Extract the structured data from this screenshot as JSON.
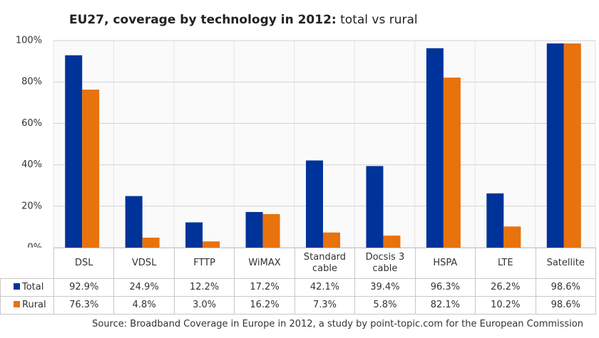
{
  "chart_data": {
    "type": "bar",
    "title": "EU27, coverage by technology in 2012:",
    "subtitle": "total vs rural",
    "source": "Source: Broadband Coverage in Europe in 2012, a study by point-topic.com for the European Commission",
    "categories": [
      "DSL",
      "VDSL",
      "FTTP",
      "WiMAX",
      "Standard cable",
      "Docsis 3 cable",
      "HSPA",
      "LTE",
      "Satellite"
    ],
    "series": [
      {
        "name": "Total",
        "color": "#003399",
        "values": [
          92.9,
          24.9,
          12.2,
          17.2,
          42.1,
          39.4,
          96.3,
          26.2,
          98.6
        ],
        "value_labels": [
          "92.9%",
          "24.9%",
          "12.2%",
          "17.2%",
          "42.1%",
          "39.4%",
          "96.3%",
          "26.2%",
          "98.6%"
        ]
      },
      {
        "name": "Rural",
        "color": "#e8720c",
        "values": [
          76.3,
          4.8,
          3.0,
          16.2,
          7.3,
          5.8,
          82.1,
          10.2,
          98.6
        ],
        "value_labels": [
          "76.3%",
          "4.8%",
          "3.0%",
          "16.2%",
          "7.3%",
          "5.8%",
          "82.1%",
          "10.2%",
          "98.6%"
        ]
      }
    ],
    "ylim": [
      0,
      100
    ],
    "yticks": [
      {
        "value": 0,
        "label": "0%"
      },
      {
        "value": 20,
        "label": "20%"
      },
      {
        "value": 40,
        "label": "40%"
      },
      {
        "value": 60,
        "label": "60%"
      },
      {
        "value": 80,
        "label": "80%"
      },
      {
        "value": 100,
        "label": "100%"
      }
    ],
    "grid": true
  }
}
